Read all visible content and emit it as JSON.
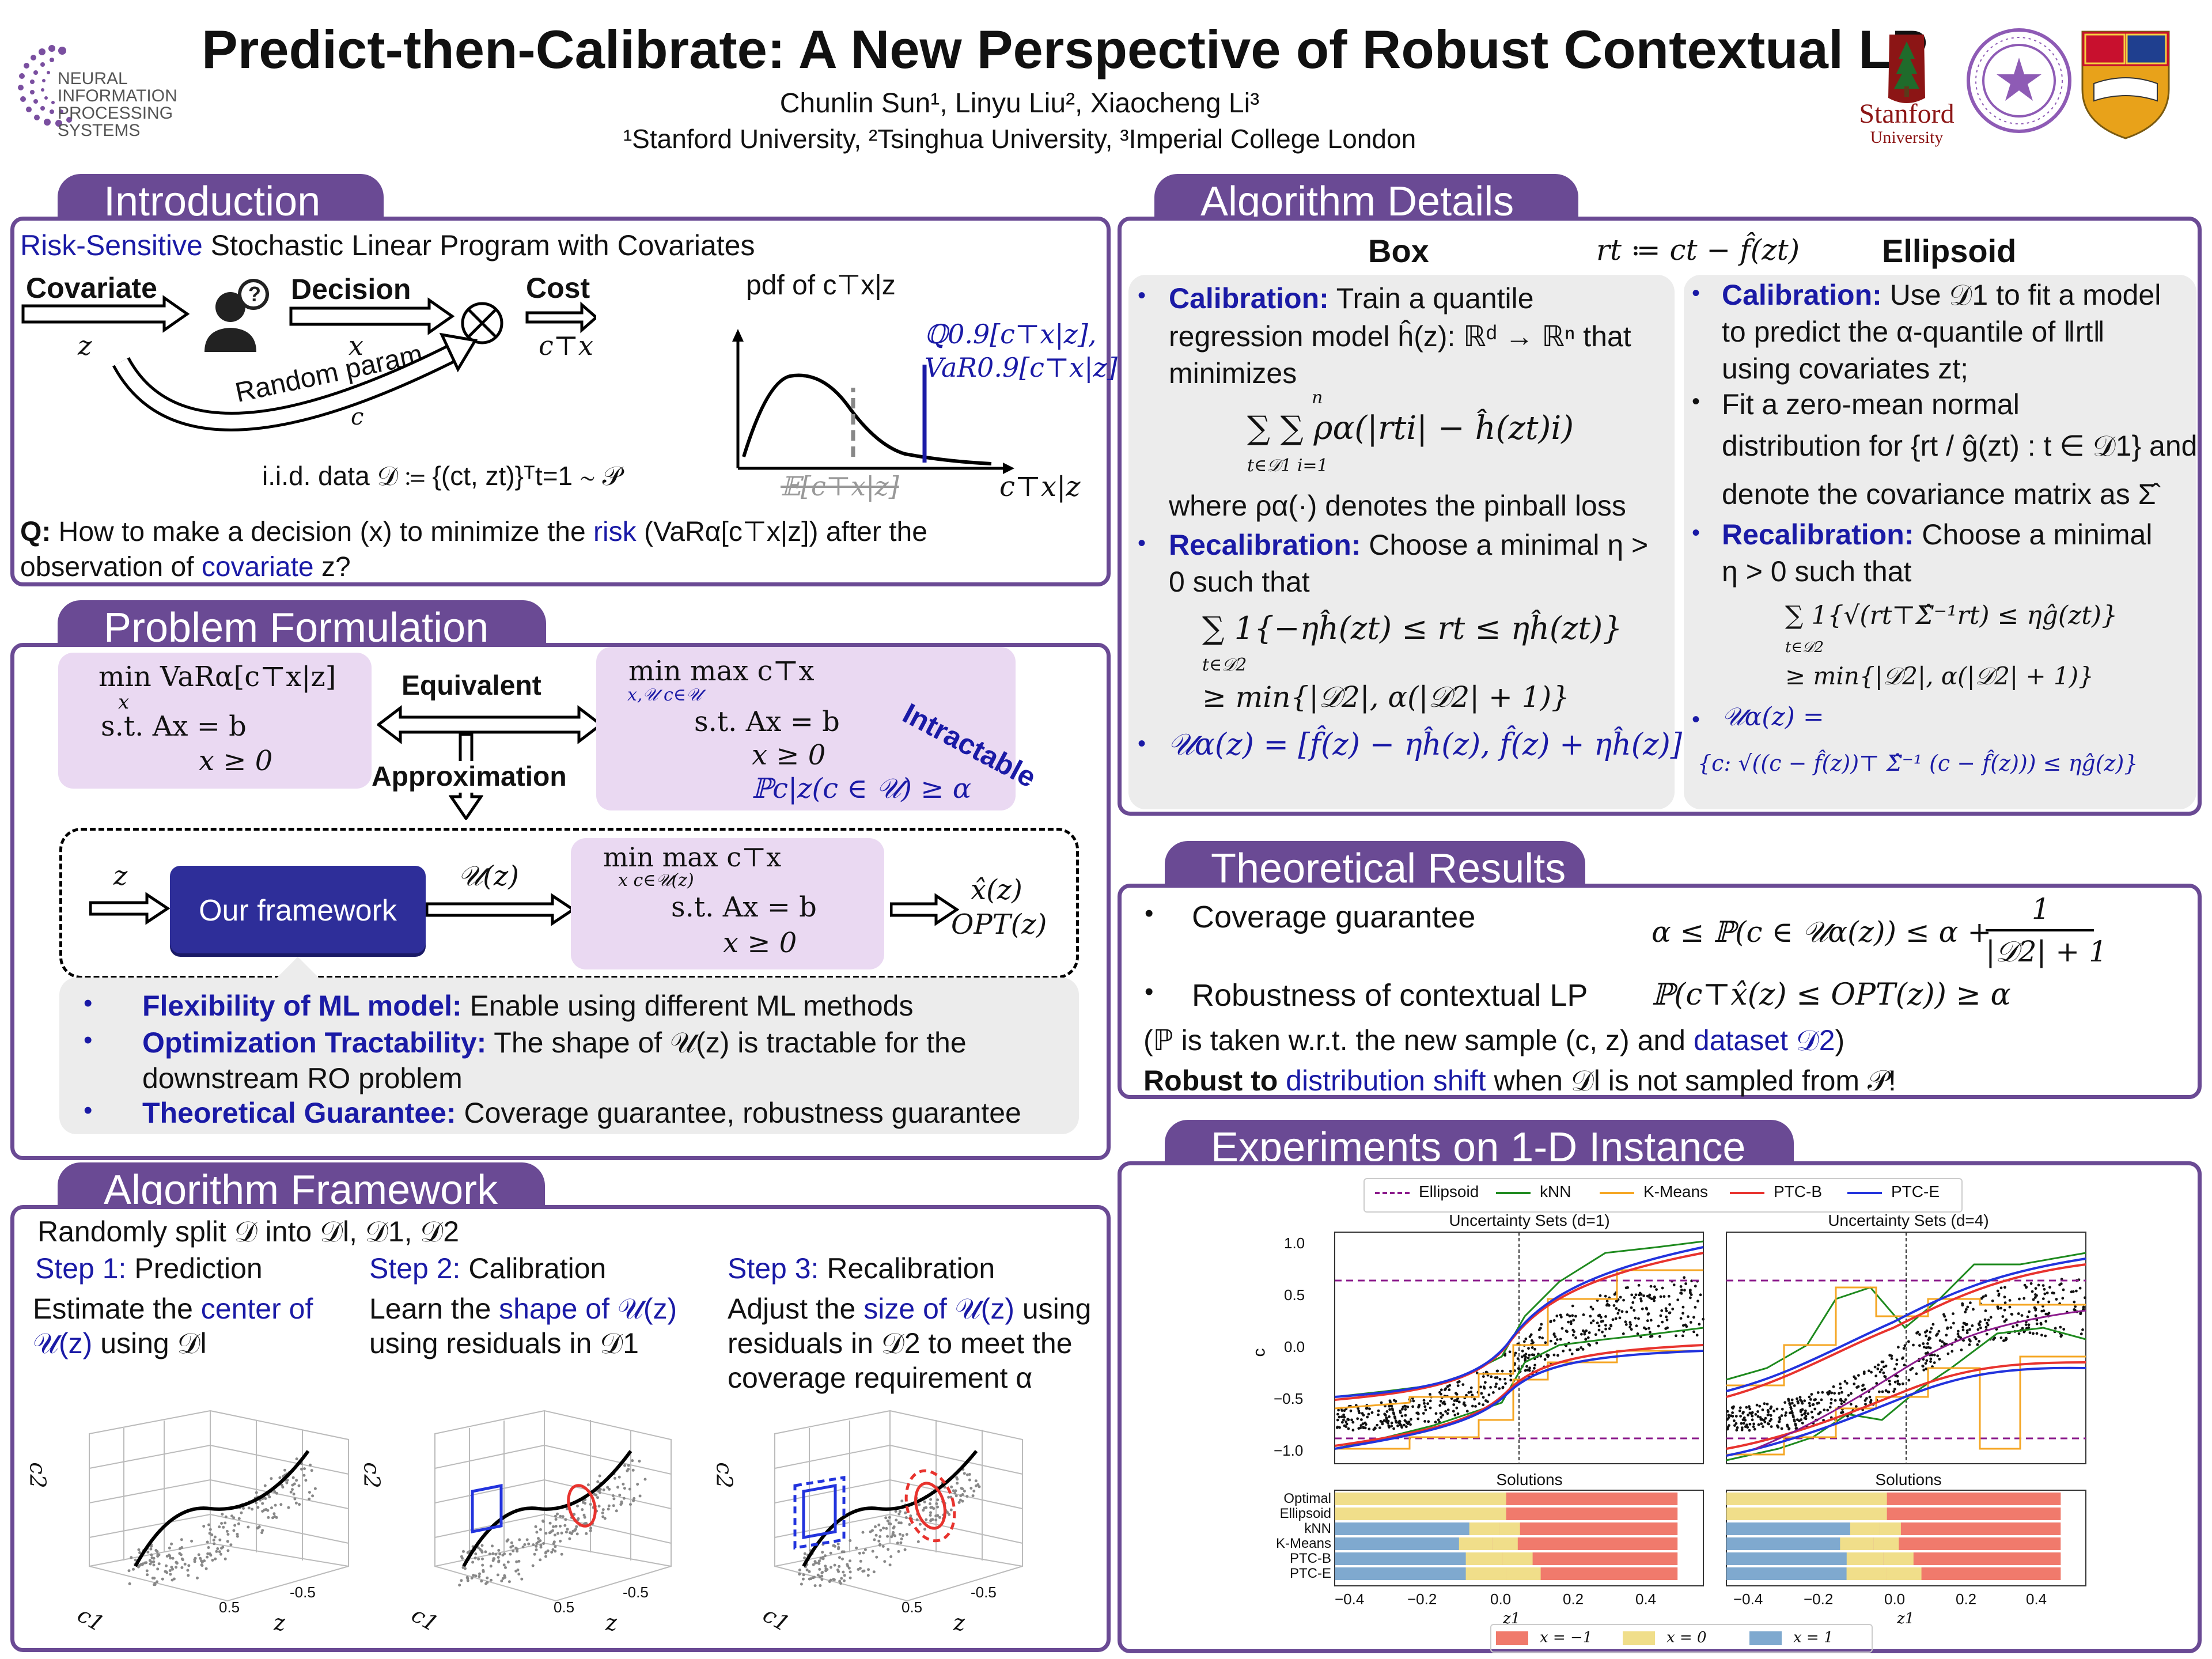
{
  "header": {
    "title": "Predict-then-Calibrate: A New Perspective of Robust Contextual LP",
    "authors": "Chunlin Sun¹, Linyu Liu², Xiaocheng Li³",
    "affiliations": "¹Stanford University, ²Tsinghua University, ³Imperial College London",
    "neurips_logo": [
      "NEURAL",
      "INFORMATION",
      "PROCESSING",
      "SYSTEMS"
    ],
    "stanford_logo": "Stanford",
    "stanford_sub": "University"
  },
  "intro": {
    "tab": "Introduction",
    "heading_colored": "Risk-Sensitive",
    "heading_rest": " Stochastic Linear Program with Covariates",
    "covariate": "Covariate",
    "decision": "Decision",
    "cost": "Cost",
    "random_param": "Random param",
    "z": "z",
    "x": "x",
    "c": "c",
    "cx": "c⊤x",
    "pdf_label": "pdf of c⊤x|z",
    "q_label1": "ℚ0.9[c⊤x|z],",
    "q_label2": "VaR0.9[c⊤x|z]",
    "axis_label": "c⊤x|z",
    "expect_label": "𝔼[c⊤x|z]",
    "iid": "i.i.d. data 𝒟 ≔ {(ct, zt)}ᵀt=1 ∼ 𝒫",
    "q_prefix": "Q:",
    "q_text1": " How to make a decision (x) to minimize the ",
    "q_risk": "risk",
    "q_text2": " (VaRα[c⊤x|z]) after the",
    "q_text3": "observation of ",
    "q_cov": "covariate",
    "q_text4": " z?"
  },
  "problem": {
    "tab": "Problem Formulation",
    "box1_l1": "min  VaRα[c⊤x|z]",
    "box1_l1b": "x",
    "box1_l2": "s.t.  Ax = b",
    "box1_l3": "x ≥ 0",
    "equivalent": "Equivalent",
    "approximation": "Approximation",
    "intractable": "Intractable",
    "box2_l1": "min max  c⊤x",
    "box2_l1b": "x,𝒰   c∈𝒰",
    "box2_l2": "s.t.  Ax = b",
    "box2_l3": "x ≥ 0",
    "box2_l4": "ℙc|z(c ∈ 𝒰) ≥ α",
    "fw_z": "z",
    "fw_button": "Our framework",
    "fw_u": "𝒰(z)",
    "box3_l1": "min   max   c⊤x",
    "box3_l1b": "x     c∈𝒰(z)",
    "box3_l2": "s.t.  Ax = b",
    "box3_l3": "x ≥ 0",
    "out1": "x̂(z)",
    "out2": "OPT(z)",
    "bullets": [
      {
        "key": "Flexibility of ML model:",
        "text": " Enable using different ML methods"
      },
      {
        "key": "Optimization Tractability:",
        "text": " The shape of 𝒰(z) is tractable for the"
      },
      {
        "key": "",
        "text": "downstream RO problem"
      },
      {
        "key": "Theoretical Guarantee:",
        "text": " Coverage guarantee, robustness guarantee"
      }
    ]
  },
  "framework": {
    "tab": "Algorithm Framework",
    "split": "Randomly split 𝒟 into 𝒟l, 𝒟1, 𝒟2",
    "steps": [
      {
        "num": "Step 1:",
        "name": " Prediction",
        "l1a": "Estimate the ",
        "l1b": "center of",
        "l2a": "𝒰(z)",
        "l2b": " using 𝒟l",
        "l3": ""
      },
      {
        "num": "Step 2:",
        "name": " Calibration",
        "l1a": "Learn the ",
        "l1b": "shape of 𝒰(z)",
        "l2a": "",
        "l2b": "using residuals in 𝒟1",
        "l3": ""
      },
      {
        "num": "Step 3:",
        "name": " Recalibration",
        "l1a": "Adjust the ",
        "l1b": "size of 𝒰(z)",
        "l1c": " using",
        "l2a": "",
        "l2b": "residuals in 𝒟2 to meet the",
        "l3": "coverage requirement α"
      }
    ],
    "axis_c2": "c2",
    "axis_c1": "c1",
    "axis_z": "z",
    "tick_a": "0.5",
    "tick_b": "-0.5"
  },
  "algo": {
    "tab": "Algorithm Details",
    "box_title": "Box",
    "resid": "rt ≔ ct − f̂(zt)",
    "ell_title": "Ellipsoid",
    "box": {
      "cal_key": "Calibration:",
      "cal1": " Train a quantile",
      "cal2": "regression model ĥ(z): ℝᵈ → ℝⁿ that",
      "cal3": "minimizes",
      "sum_formula": "∑ ∑  ρα(|rti| − ĥ(zt)i)",
      "sum_sub": "t∈𝒟1  i=1",
      "sum_sup": "n",
      "pinball": "where ρα(·) denotes the pinball loss",
      "recal_key": "Recalibration:",
      "recal1": " Choose a minimal η >",
      "recal2": "0 such that",
      "recal_formula": "∑  1{−ηĥ(zt) ≤ rt ≤ ηĥ(zt)}",
      "recal_sub": "t∈𝒟2",
      "recal_bound": "≥ min{|𝒟2|, α(|𝒟2| + 1)}",
      "u_formula": "𝒰α(z) = [f̂(z) − ηĥ(z), f̂(z) + ηĥ(z)]"
    },
    "ell": {
      "cal_key": "Calibration:",
      "cal1": " Use 𝒟1 to fit a model",
      "cal2": "to predict the α-quantile of ‖rt‖",
      "cal3": "using covariates zt;",
      "fit1": "Fit a zero-mean normal",
      "fit2": "distribution for {rt / ĝ(zt) : t ∈ 𝒟1} and",
      "fit3": "denote the covariance matrix as Σ̂",
      "recal_key": "Recalibration:",
      "recal1": " Choose a minimal",
      "recal2": "η > 0 such that",
      "recal_formula": "∑ 1{√(rt⊤Σ̂⁻¹rt) ≤ ηĝ(zt)}",
      "recal_sub": "t∈𝒟2",
      "recal_bound": "≥ min{|𝒟2|, α(|𝒟2| + 1)}",
      "u_formula1": "𝒰α(z) =",
      "u_formula2": "{c: √((c − f̂(z))⊤ Σ̂⁻¹ (c − f̂(z))) ≤ ηĝ(z)}"
    }
  },
  "theory": {
    "tab": "Theoretical Results",
    "b1": "Coverage guarantee",
    "f1": "α ≤ ℙ(c ∈ 𝒰α(z)) ≤ α +",
    "f1_num": "1",
    "f1_den": "|𝒟2| + 1",
    "b2": "Robustness of contextual LP",
    "f2": "ℙ(c⊤x̂(z) ≤ OPT(z)) ≥ α",
    "note1": "(ℙ is taken w.r.t. the new sample (c, z) and ",
    "note1_blue": "dataset 𝒟2",
    "note1_end": ")",
    "note2a": "Robust to ",
    "note2b": "distribution shift",
    "note2c": " when 𝒟l is not sampled from 𝒫!"
  },
  "experiments": {
    "tab": "Experiments on 1-D Instance",
    "legend": [
      {
        "name": "Ellipsoid",
        "color": "#8b1a8b",
        "dash": true
      },
      {
        "name": "kNN",
        "color": "#1e8a1e",
        "dash": false
      },
      {
        "name": "K-Means",
        "color": "#f5a623",
        "dash": false
      },
      {
        "name": "PTC-B",
        "color": "#e8332e",
        "dash": false
      },
      {
        "name": "PTC-E",
        "color": "#2233dd",
        "dash": false
      }
    ],
    "panel_titles": [
      "Uncertainty Sets (d=1)",
      "Uncertainty Sets (d=4)"
    ],
    "ylabel": "c",
    "yticks": [
      "1.0",
      "0.5",
      "0.0",
      "−0.5",
      "−1.0"
    ],
    "solutions_title": "Solutions",
    "methods": [
      "Optimal",
      "Ellipsoid",
      "kNN",
      "K-Means",
      "PTC-B",
      "PTC-E"
    ],
    "xticks": [
      "−0.4",
      "−0.2",
      "0.0",
      "0.2",
      "0.4"
    ],
    "xlabel": "z1",
    "sol_legend": [
      {
        "name": "x = −1",
        "color": "#f07a6c"
      },
      {
        "name": "x = 0",
        "color": "#f0de8a"
      },
      {
        "name": "x = 1",
        "color": "#7fa9cf"
      }
    ]
  }
}
